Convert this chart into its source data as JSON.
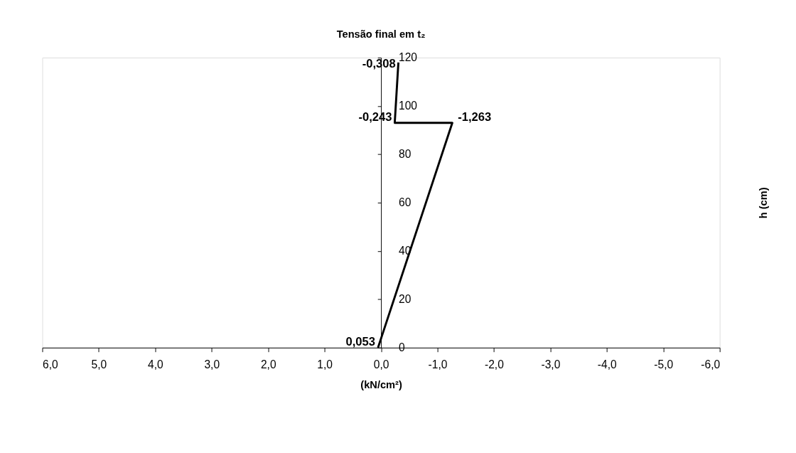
{
  "chart_data": {
    "type": "line",
    "title": "Tensão final em t₂",
    "xlabel": "(kN/cm²)",
    "ylabel": "h (cm)",
    "series": [
      {
        "color": "#000000",
        "x": [
          0.053,
          -1.263,
          -0.243,
          -0.308
        ],
        "values": [
          0,
          93,
          93,
          118
        ]
      }
    ],
    "annotations": [
      {
        "text": "0,053",
        "x": 0.053,
        "y": 0
      },
      {
        "text": "-1,263",
        "x": -1.263,
        "y": 93
      },
      {
        "text": "-0,243",
        "x": -0.243,
        "y": 93
      },
      {
        "text": "-0,308",
        "x": -0.308,
        "y": 118
      }
    ],
    "xlim": [
      6,
      -6
    ],
    "xticks": [
      {
        "value": 6,
        "label": "6,0"
      },
      {
        "value": 5,
        "label": "5,0"
      },
      {
        "value": 4,
        "label": "4,0"
      },
      {
        "value": 3,
        "label": "3,0"
      },
      {
        "value": 2,
        "label": "2,0"
      },
      {
        "value": 1,
        "label": "1,0"
      },
      {
        "value": 0,
        "label": "0,0"
      },
      {
        "value": -1,
        "label": "-1,0"
      },
      {
        "value": -2,
        "label": "-2,0"
      },
      {
        "value": -3,
        "label": "-3,0"
      },
      {
        "value": -4,
        "label": "-4,0"
      },
      {
        "value": -5,
        "label": "-5,0"
      },
      {
        "value": -6,
        "label": "-6,0"
      }
    ],
    "ylim": [
      0,
      120
    ],
    "yticks": [
      0,
      20,
      40,
      60,
      80,
      100,
      120
    ],
    "grid": false,
    "marker": "none",
    "line_style": "solid"
  }
}
